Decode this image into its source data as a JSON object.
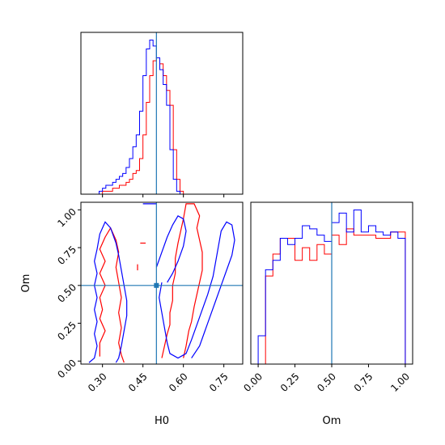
{
  "chart_data": [
    {
      "type": "histogram",
      "panel": "H0 marginal",
      "bins_start": 0.25,
      "bin_width": 0.0125,
      "series": [
        {
          "color": "#ff0000",
          "values": [
            0,
            0,
            0,
            0,
            1,
            1,
            1,
            2,
            2,
            3,
            3,
            4,
            5,
            7,
            8,
            12,
            20,
            31,
            40,
            45,
            46,
            44,
            40,
            35,
            30,
            15,
            5,
            1
          ]
        },
        {
          "color": "#0000ff",
          "values": [
            0,
            0,
            0,
            1,
            2,
            3,
            3,
            4,
            5,
            6,
            7,
            9,
            12,
            16,
            20,
            28,
            40,
            49,
            52,
            50,
            46,
            42,
            37,
            30,
            15,
            5,
            1,
            0
          ]
        }
      ],
      "truth": {
        "x": 0.5
      },
      "xlim": [
        0.22,
        0.82
      ],
      "x_ticks": [
        0.3,
        0.45,
        0.6,
        0.75
      ]
    },
    {
      "type": "contour",
      "panel": "H0 vs Om",
      "xlabel": "H0",
      "ylabel": "Om",
      "xlim": [
        0.22,
        0.82
      ],
      "ylim": [
        -0.02,
        1.05
      ],
      "x_tick_labels": [
        "0.30",
        "0.45",
        "0.60",
        "0.75"
      ],
      "y_tick_labels": [
        "0.00",
        "0.25",
        "0.50",
        "0.75",
        "1.00"
      ],
      "truth": {
        "x": 0.5,
        "y": 0.5
      },
      "series": [
        {
          "color": "#ff0000",
          "contours": [
            [
              [
                0.29,
                0.03
              ],
              [
                0.29,
                0.12
              ],
              [
                0.31,
                0.2
              ],
              [
                0.29,
                0.28
              ],
              [
                0.3,
                0.34
              ],
              [
                0.29,
                0.42
              ],
              [
                0.31,
                0.5
              ],
              [
                0.29,
                0.58
              ],
              [
                0.31,
                0.66
              ],
              [
                0.29,
                0.74
              ],
              [
                0.31,
                0.82
              ],
              [
                0.33,
                0.88
              ],
              [
                0.35,
                0.8
              ],
              [
                0.36,
                0.72
              ],
              [
                0.35,
                0.62
              ],
              [
                0.36,
                0.52
              ],
              [
                0.37,
                0.42
              ],
              [
                0.36,
                0.32
              ],
              [
                0.37,
                0.22
              ],
              [
                0.36,
                0.12
              ],
              [
                0.37,
                0.04
              ],
              [
                0.38,
                -0.01
              ]
            ],
            [
              [
                0.52,
                0.02
              ],
              [
                0.53,
                0.1
              ],
              [
                0.54,
                0.18
              ],
              [
                0.55,
                0.24
              ],
              [
                0.55,
                0.32
              ],
              [
                0.56,
                0.4
              ],
              [
                0.56,
                0.5
              ],
              [
                0.57,
                0.58
              ],
              [
                0.57,
                0.68
              ],
              [
                0.58,
                0.78
              ],
              [
                0.59,
                0.86
              ],
              [
                0.6,
                0.94
              ],
              [
                0.61,
                1.04
              ],
              [
                0.64,
                1.04
              ],
              [
                0.66,
                0.96
              ],
              [
                0.65,
                0.88
              ],
              [
                0.66,
                0.8
              ],
              [
                0.67,
                0.72
              ],
              [
                0.67,
                0.6
              ],
              [
                0.66,
                0.52
              ],
              [
                0.65,
                0.44
              ],
              [
                0.64,
                0.36
              ],
              [
                0.63,
                0.26
              ],
              [
                0.62,
                0.2
              ],
              [
                0.61,
                0.1
              ],
              [
                0.6,
                0.02
              ]
            ],
            [
              [
                0.44,
                0.78
              ],
              [
                0.46,
                0.78
              ]
            ],
            [
              [
                0.43,
                0.6
              ],
              [
                0.43,
                0.64
              ]
            ]
          ]
        },
        {
          "color": "#0000ff",
          "contours": [
            [
              [
                0.25,
                -0.01
              ],
              [
                0.27,
                0.02
              ],
              [
                0.28,
                0.1
              ],
              [
                0.27,
                0.18
              ],
              [
                0.28,
                0.26
              ],
              [
                0.27,
                0.34
              ],
              [
                0.28,
                0.42
              ],
              [
                0.27,
                0.5
              ],
              [
                0.28,
                0.58
              ],
              [
                0.27,
                0.66
              ],
              [
                0.28,
                0.74
              ],
              [
                0.29,
                0.84
              ],
              [
                0.31,
                0.92
              ],
              [
                0.33,
                0.88
              ],
              [
                0.35,
                0.78
              ],
              [
                0.36,
                0.7
              ],
              [
                0.37,
                0.6
              ],
              [
                0.38,
                0.5
              ],
              [
                0.39,
                0.4
              ],
              [
                0.39,
                0.3
              ],
              [
                0.38,
                0.2
              ],
              [
                0.37,
                0.1
              ],
              [
                0.36,
                0.02
              ],
              [
                0.35,
                -0.01
              ]
            ],
            [
              [
                0.45,
                1.04
              ],
              [
                0.5,
                1.04
              ]
            ],
            [
              [
                0.52,
                0.52
              ],
              [
                0.51,
                0.42
              ],
              [
                0.52,
                0.32
              ],
              [
                0.53,
                0.22
              ],
              [
                0.54,
                0.12
              ],
              [
                0.55,
                0.05
              ],
              [
                0.58,
                0.02
              ],
              [
                0.61,
                0.05
              ],
              [
                0.63,
                0.14
              ],
              [
                0.65,
                0.24
              ],
              [
                0.67,
                0.34
              ],
              [
                0.69,
                0.44
              ],
              [
                0.71,
                0.56
              ],
              [
                0.72,
                0.66
              ],
              [
                0.73,
                0.76
              ],
              [
                0.74,
                0.86
              ],
              [
                0.76,
                0.92
              ],
              [
                0.78,
                0.9
              ],
              [
                0.79,
                0.8
              ],
              [
                0.78,
                0.7
              ],
              [
                0.76,
                0.6
              ],
              [
                0.74,
                0.5
              ],
              [
                0.72,
                0.4
              ],
              [
                0.7,
                0.3
              ],
              [
                0.68,
                0.2
              ],
              [
                0.66,
                0.1
              ],
              [
                0.63,
                0.02
              ]
            ],
            [
              [
                0.5,
                0.62
              ],
              [
                0.52,
                0.72
              ],
              [
                0.54,
                0.82
              ],
              [
                0.56,
                0.9
              ],
              [
                0.58,
                0.96
              ],
              [
                0.6,
                0.94
              ],
              [
                0.61,
                0.86
              ],
              [
                0.6,
                0.76
              ],
              [
                0.58,
                0.66
              ],
              [
                0.56,
                0.58
              ],
              [
                0.54,
                0.52
              ]
            ]
          ]
        }
      ]
    },
    {
      "type": "histogram",
      "panel": "Om marginal",
      "xlabel": "Om",
      "bins_start": 0.0,
      "bin_width": 0.05,
      "xlim": [
        -0.05,
        1.05
      ],
      "x_tick_labels": [
        "0.00",
        "0.25",
        "0.50",
        "0.75",
        "1.00"
      ],
      "truth": {
        "x": 0.5
      },
      "series": [
        {
          "color": "#ff0000",
          "values": [
            0,
            28,
            35,
            40,
            40,
            33,
            37,
            33,
            38,
            35,
            41,
            38,
            43,
            41,
            41,
            41,
            40,
            40,
            42,
            42
          ]
        },
        {
          "color": "#0000ff",
          "values": [
            9,
            30,
            33,
            40,
            38,
            40,
            44,
            43,
            41,
            39,
            45,
            48,
            42,
            49,
            42,
            44,
            42,
            41,
            42,
            40
          ]
        }
      ]
    }
  ]
}
